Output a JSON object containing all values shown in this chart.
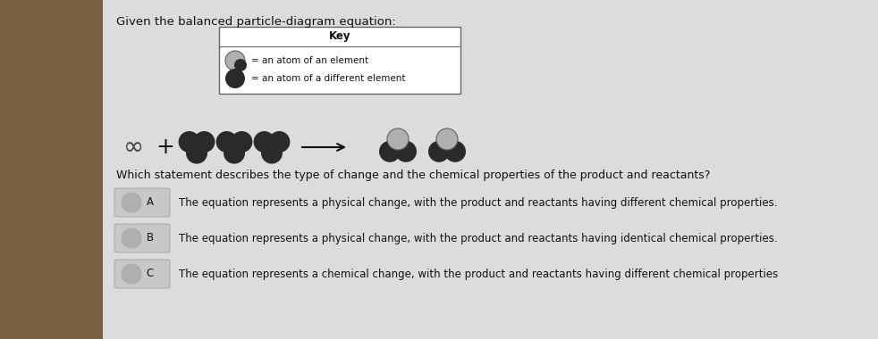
{
  "title": "Given the balanced particle-diagram equation:",
  "key_title": "Key",
  "key_item1": "= an atom of an element",
  "key_item2": "= an atom of a different element",
  "question": "Which statement describes the type of change and the chemical properties of the product and reactants?",
  "answer_A": "The equation represents a physical change, with the product and reactants having different chemical properties.",
  "answer_B": "The equation represents a physical change, with the product and reactants having identical chemical properties.",
  "answer_C": "The equation represents a chemical change, with the product and reactants having different chemical properties",
  "bg_left_color": "#8B7355",
  "paper_color": "#dcdcdc",
  "dark_atom_color": "#2a2a2a",
  "light_atom_color": "#b0b0b0",
  "light_atom_outline": "#606060",
  "text_color": "#111111",
  "option_box_color": "#c8c8c8",
  "option_circle_color": "#b0b0b0",
  "key_bg": "#ffffff"
}
